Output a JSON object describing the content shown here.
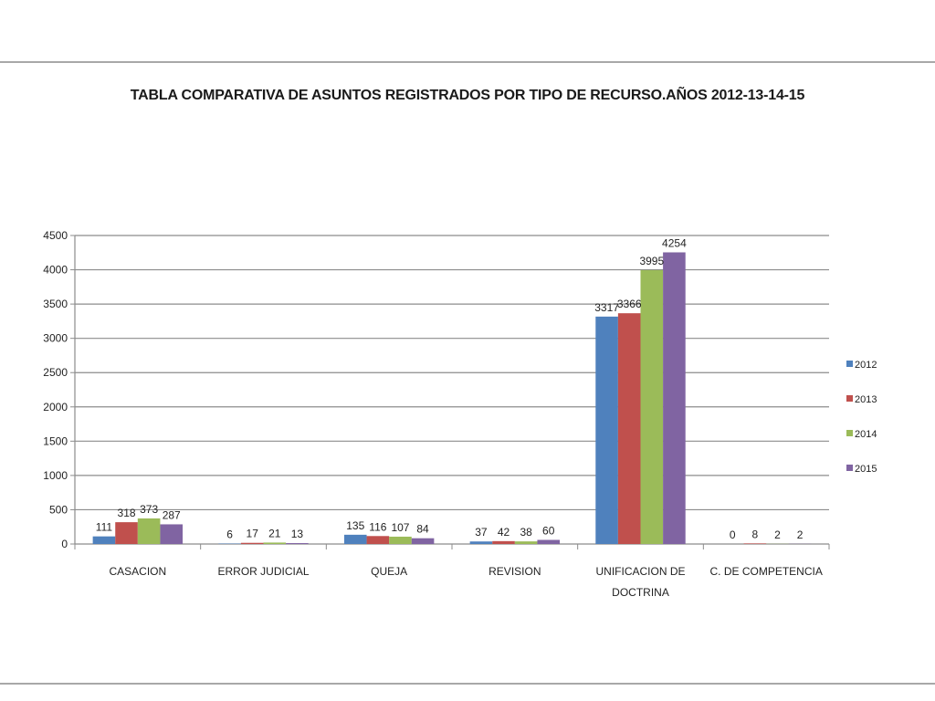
{
  "chart_data": {
    "type": "bar",
    "title": "TABLA COMPARATIVA DE ASUNTOS REGISTRADOS POR TIPO DE RECURSO.AÑOS 2012-13-14-15",
    "xlabel": "",
    "ylabel": "",
    "ylim": [
      0,
      4500
    ],
    "yticks": [
      0,
      500,
      1000,
      1500,
      2000,
      2500,
      3000,
      3500,
      4000,
      4500
    ],
    "grid": true,
    "legend_position": "right",
    "categories": [
      [
        "CASACION"
      ],
      [
        "ERROR JUDICIAL"
      ],
      [
        "QUEJA"
      ],
      [
        "REVISION"
      ],
      [
        "UNIFICACION DE",
        "DOCTRINA"
      ],
      [
        "C. DE COMPETENCIA"
      ]
    ],
    "series": [
      {
        "name": "2012",
        "color": "#4f81bd",
        "values": [
          111,
          6,
          135,
          37,
          3317,
          0
        ]
      },
      {
        "name": "2013",
        "color": "#c0504d",
        "values": [
          318,
          17,
          116,
          42,
          3366,
          8
        ]
      },
      {
        "name": "2014",
        "color": "#9bbb59",
        "values": [
          373,
          21,
          107,
          38,
          3995,
          2
        ]
      },
      {
        "name": "2015",
        "color": "#8064a2",
        "values": [
          287,
          13,
          84,
          60,
          4254,
          2
        ]
      }
    ]
  }
}
